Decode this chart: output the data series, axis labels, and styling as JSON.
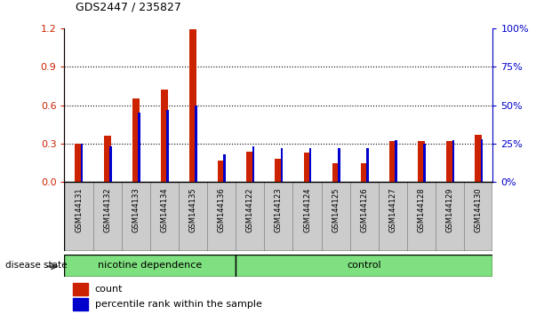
{
  "title": "GDS2447 / 235827",
  "samples": [
    "GSM144131",
    "GSM144132",
    "GSM144133",
    "GSM144134",
    "GSM144135",
    "GSM144136",
    "GSM144122",
    "GSM144123",
    "GSM144124",
    "GSM144125",
    "GSM144126",
    "GSM144127",
    "GSM144128",
    "GSM144129",
    "GSM144130"
  ],
  "count_values": [
    0.3,
    0.36,
    0.65,
    0.72,
    1.19,
    0.17,
    0.24,
    0.18,
    0.23,
    0.15,
    0.15,
    0.32,
    0.32,
    0.32,
    0.37
  ],
  "percentile_values": [
    25,
    23,
    45,
    47,
    50,
    18,
    23,
    22,
    22,
    22,
    22,
    27,
    25,
    27,
    28
  ],
  "groups": [
    "nicotine dependence",
    "nicotine dependence",
    "nicotine dependence",
    "nicotine dependence",
    "nicotine dependence",
    "nicotine dependence",
    "control",
    "control",
    "control",
    "control",
    "control",
    "control",
    "control",
    "control",
    "control"
  ],
  "bar_color": "#CC2200",
  "percentile_color": "#0000CC",
  "ylim_left": [
    0,
    1.2
  ],
  "ylim_right": [
    0,
    100
  ],
  "yticks_left": [
    0,
    0.3,
    0.6,
    0.9,
    1.2
  ],
  "yticks_right": [
    0,
    25,
    50,
    75,
    100
  ],
  "grid_lines": [
    0.3,
    0.6,
    0.9
  ],
  "background_color": "#ffffff",
  "disease_state_label": "disease state",
  "legend_count": "count",
  "legend_percentile": "percentile rank within the sample",
  "nd_color": "#7EE07E",
  "ctrl_color": "#7EE07E",
  "xtick_bg": "#cccccc"
}
